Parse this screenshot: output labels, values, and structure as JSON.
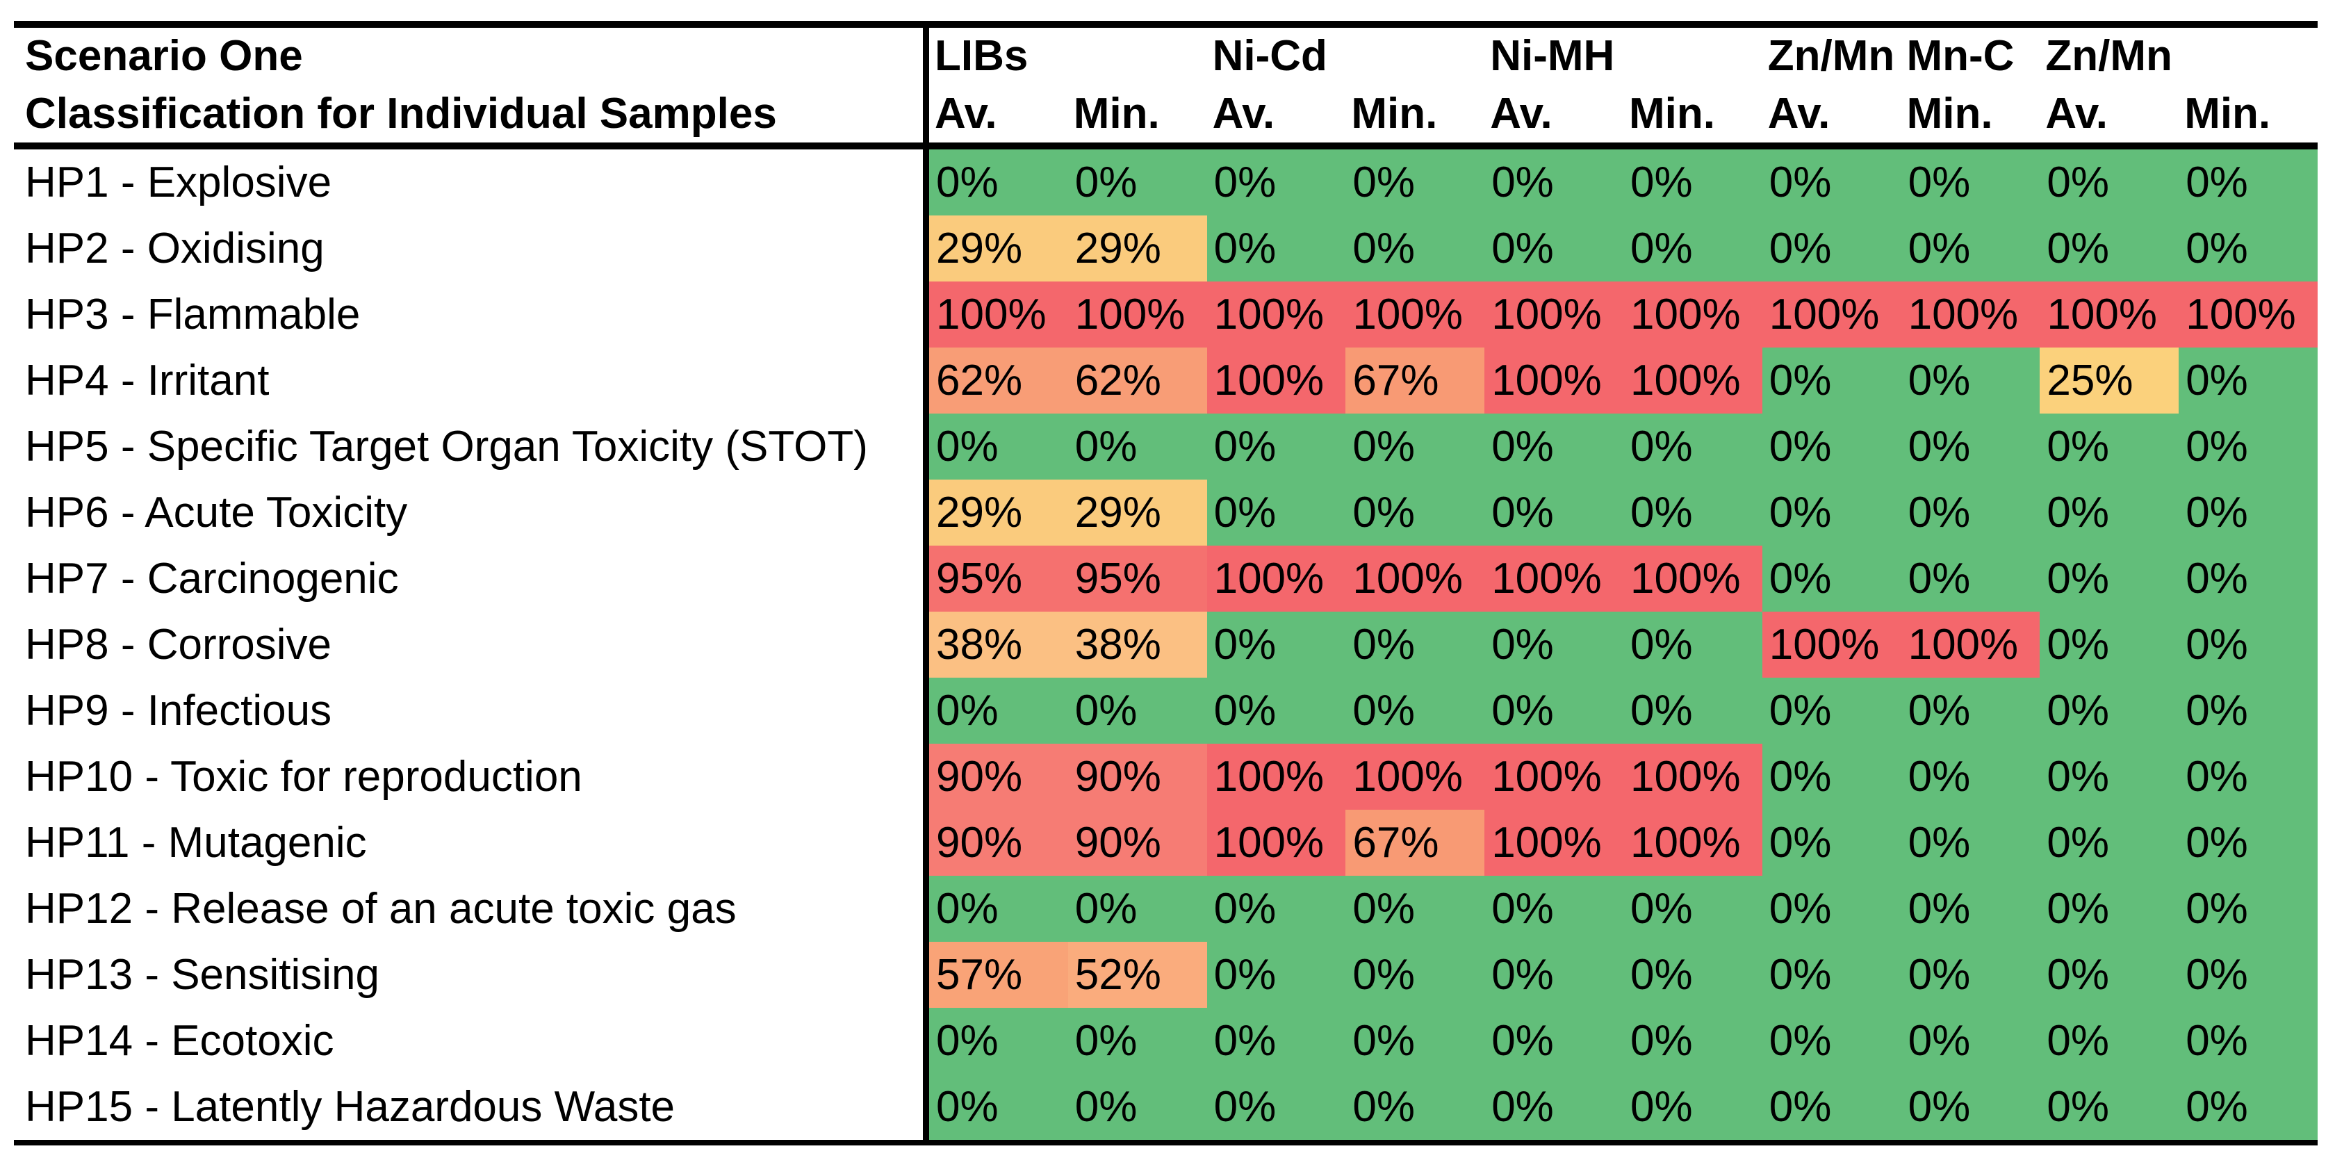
{
  "header": {
    "title_line1": "Scenario One",
    "title_line2": "Classification for Individual Samples",
    "groups": [
      "LIBs",
      "Ni-Cd",
      "Ni-MH",
      "Zn/Mn Mn-C",
      "Zn/Mn"
    ],
    "sub_labels": [
      "Av.",
      "Min."
    ]
  },
  "chart_data": {
    "type": "heatmap",
    "title": "Scenario One - Classification for Individual Samples",
    "columns": [
      "LIBs Av.",
      "LIBs Min.",
      "Ni-Cd Av.",
      "Ni-Cd Min.",
      "Ni-MH Av.",
      "Ni-MH Min.",
      "Zn/Mn Mn-C Av.",
      "Zn/Mn Mn-C Min.",
      "Zn/Mn Av.",
      "Zn/Mn Min."
    ],
    "rows": [
      "HP1 - Explosive",
      "HP2 - Oxidising",
      "HP3 - Flammable",
      "HP4 - Irritant",
      "HP5 - Specific Target Organ Toxicity (STOT)",
      "HP6 - Acute Toxicity",
      "HP7 - Carcinogenic",
      "HP8 - Corrosive",
      "HP9 - Infectious",
      "HP10 - Toxic for reproduction",
      "HP11 - Mutagenic",
      "HP12 - Release of an acute toxic gas",
      "HP13 - Sensitising",
      "HP14 - Ecotoxic",
      "HP15 - Latently Hazardous Waste"
    ],
    "values_percent": [
      [
        0,
        0,
        0,
        0,
        0,
        0,
        0,
        0,
        0,
        0
      ],
      [
        29,
        29,
        0,
        0,
        0,
        0,
        0,
        0,
        0,
        0
      ],
      [
        100,
        100,
        100,
        100,
        100,
        100,
        100,
        100,
        100,
        100
      ],
      [
        62,
        62,
        100,
        67,
        100,
        100,
        0,
        0,
        25,
        0
      ],
      [
        0,
        0,
        0,
        0,
        0,
        0,
        0,
        0,
        0,
        0
      ],
      [
        29,
        29,
        0,
        0,
        0,
        0,
        0,
        0,
        0,
        0
      ],
      [
        95,
        95,
        100,
        100,
        100,
        100,
        0,
        0,
        0,
        0
      ],
      [
        38,
        38,
        0,
        0,
        0,
        0,
        100,
        100,
        0,
        0
      ],
      [
        0,
        0,
        0,
        0,
        0,
        0,
        0,
        0,
        0,
        0
      ],
      [
        90,
        90,
        100,
        100,
        100,
        100,
        0,
        0,
        0,
        0
      ],
      [
        90,
        90,
        100,
        67,
        100,
        100,
        0,
        0,
        0,
        0
      ],
      [
        0,
        0,
        0,
        0,
        0,
        0,
        0,
        0,
        0,
        0
      ],
      [
        57,
        52,
        0,
        0,
        0,
        0,
        0,
        0,
        0,
        0
      ],
      [
        0,
        0,
        0,
        0,
        0,
        0,
        0,
        0,
        0,
        0
      ],
      [
        0,
        0,
        0,
        0,
        0,
        0,
        0,
        0,
        0,
        0
      ]
    ],
    "value_suffix": "%",
    "value_colors": {
      "0": "#62BE7A",
      "25": "#FBD17C",
      "29": "#FACB7D",
      "38": "#FBC083",
      "52": "#FAAC7D",
      "57": "#F9A377",
      "62": "#F89D76",
      "67": "#F89A74",
      "90": "#F67C74",
      "95": "#F5716F",
      "100": "#F4676C"
    },
    "color_scale_note": "0% = green, low-to-high % = yellow-orange to red",
    "grid": false,
    "legend_position": "none"
  },
  "style": {
    "background": "#FFFFFF",
    "border_color": "#000000",
    "text_color": "#000000"
  }
}
